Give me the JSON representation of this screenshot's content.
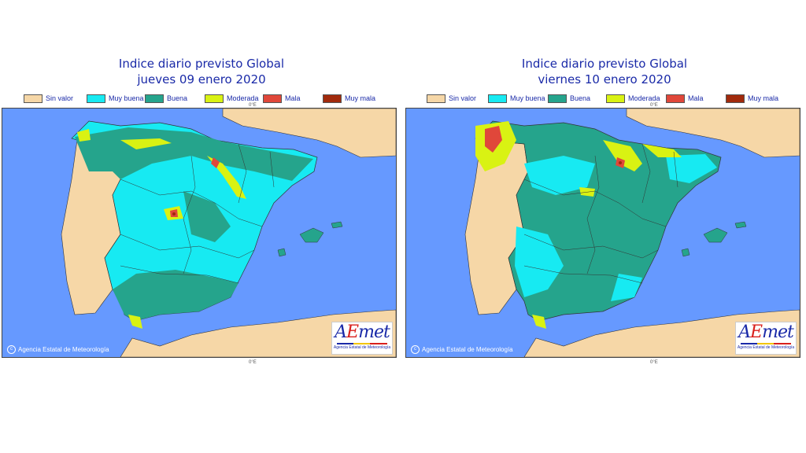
{
  "colors": {
    "sea": "#6699ff",
    "land": "#f6d7a7",
    "sin_valor": "#f6d7a7",
    "muy_buena": "#17eaf2",
    "buena": "#25a48c",
    "moderada": "#d9f213",
    "mala": "#e0473a",
    "muy_mala": "#a12a0c"
  },
  "legend": [
    {
      "label": "Sin valor",
      "color": "#f6d7a7"
    },
    {
      "label": "Muy buena",
      "color": "#17eaf2"
    },
    {
      "label": "Buena",
      "color": "#25a48c"
    },
    {
      "label": "Moderada",
      "color": "#d9f213"
    },
    {
      "label": "Mala",
      "color": "#e0473a"
    },
    {
      "label": "Muy mala",
      "color": "#a12a0c"
    }
  ],
  "maps": [
    {
      "title_line1": "Indice diario previsto Global",
      "title_line2": "jueves 09 enero 2020",
      "tick_top": "0°E",
      "tick_bottom": "0°E",
      "credit": "Agencia Estatal de Meteorología",
      "logo_a": "A",
      "logo_e": "E",
      "logo_met": "met",
      "logo_sub": "Agencia Estatal de Meteorología",
      "predominant_class": "Muy buena"
    },
    {
      "title_line1": "Indice diario previsto Global",
      "title_line2": "viernes 10 enero 2020",
      "tick_top": "0°E",
      "tick_bottom": "0°E",
      "credit": "Agencia Estatal de Meteorología",
      "logo_a": "A",
      "logo_e": "E",
      "logo_met": "met",
      "logo_sub": "Agencia Estatal de Meteorología",
      "predominant_class": "Buena"
    }
  ]
}
